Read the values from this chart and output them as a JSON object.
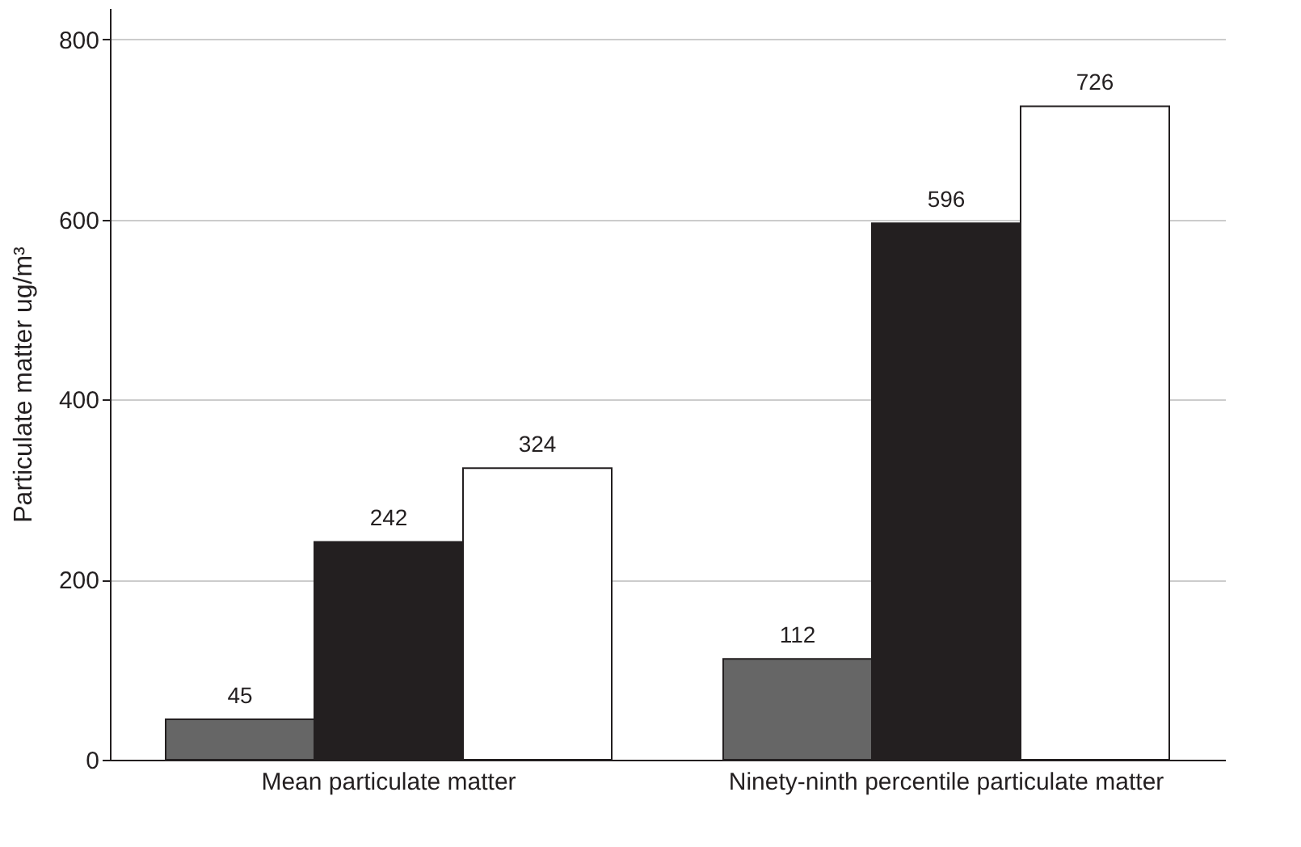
{
  "chart_data": {
    "type": "bar",
    "ylabel": "Particulate matter ug/m³",
    "categories": [
      "Mean particulate matter",
      "Ninety-ninth percentile particulate matter"
    ],
    "series": [
      {
        "color": "#666666",
        "values": [
          45,
          112
        ]
      },
      {
        "color": "#231f20",
        "values": [
          242,
          596
        ]
      },
      {
        "color": "#ffffff",
        "values": [
          324,
          726
        ]
      }
    ],
    "ylim": [
      0,
      835
    ],
    "yticks": [
      0,
      200,
      400,
      600,
      800
    ],
    "grid": "y",
    "data_labels": true
  }
}
